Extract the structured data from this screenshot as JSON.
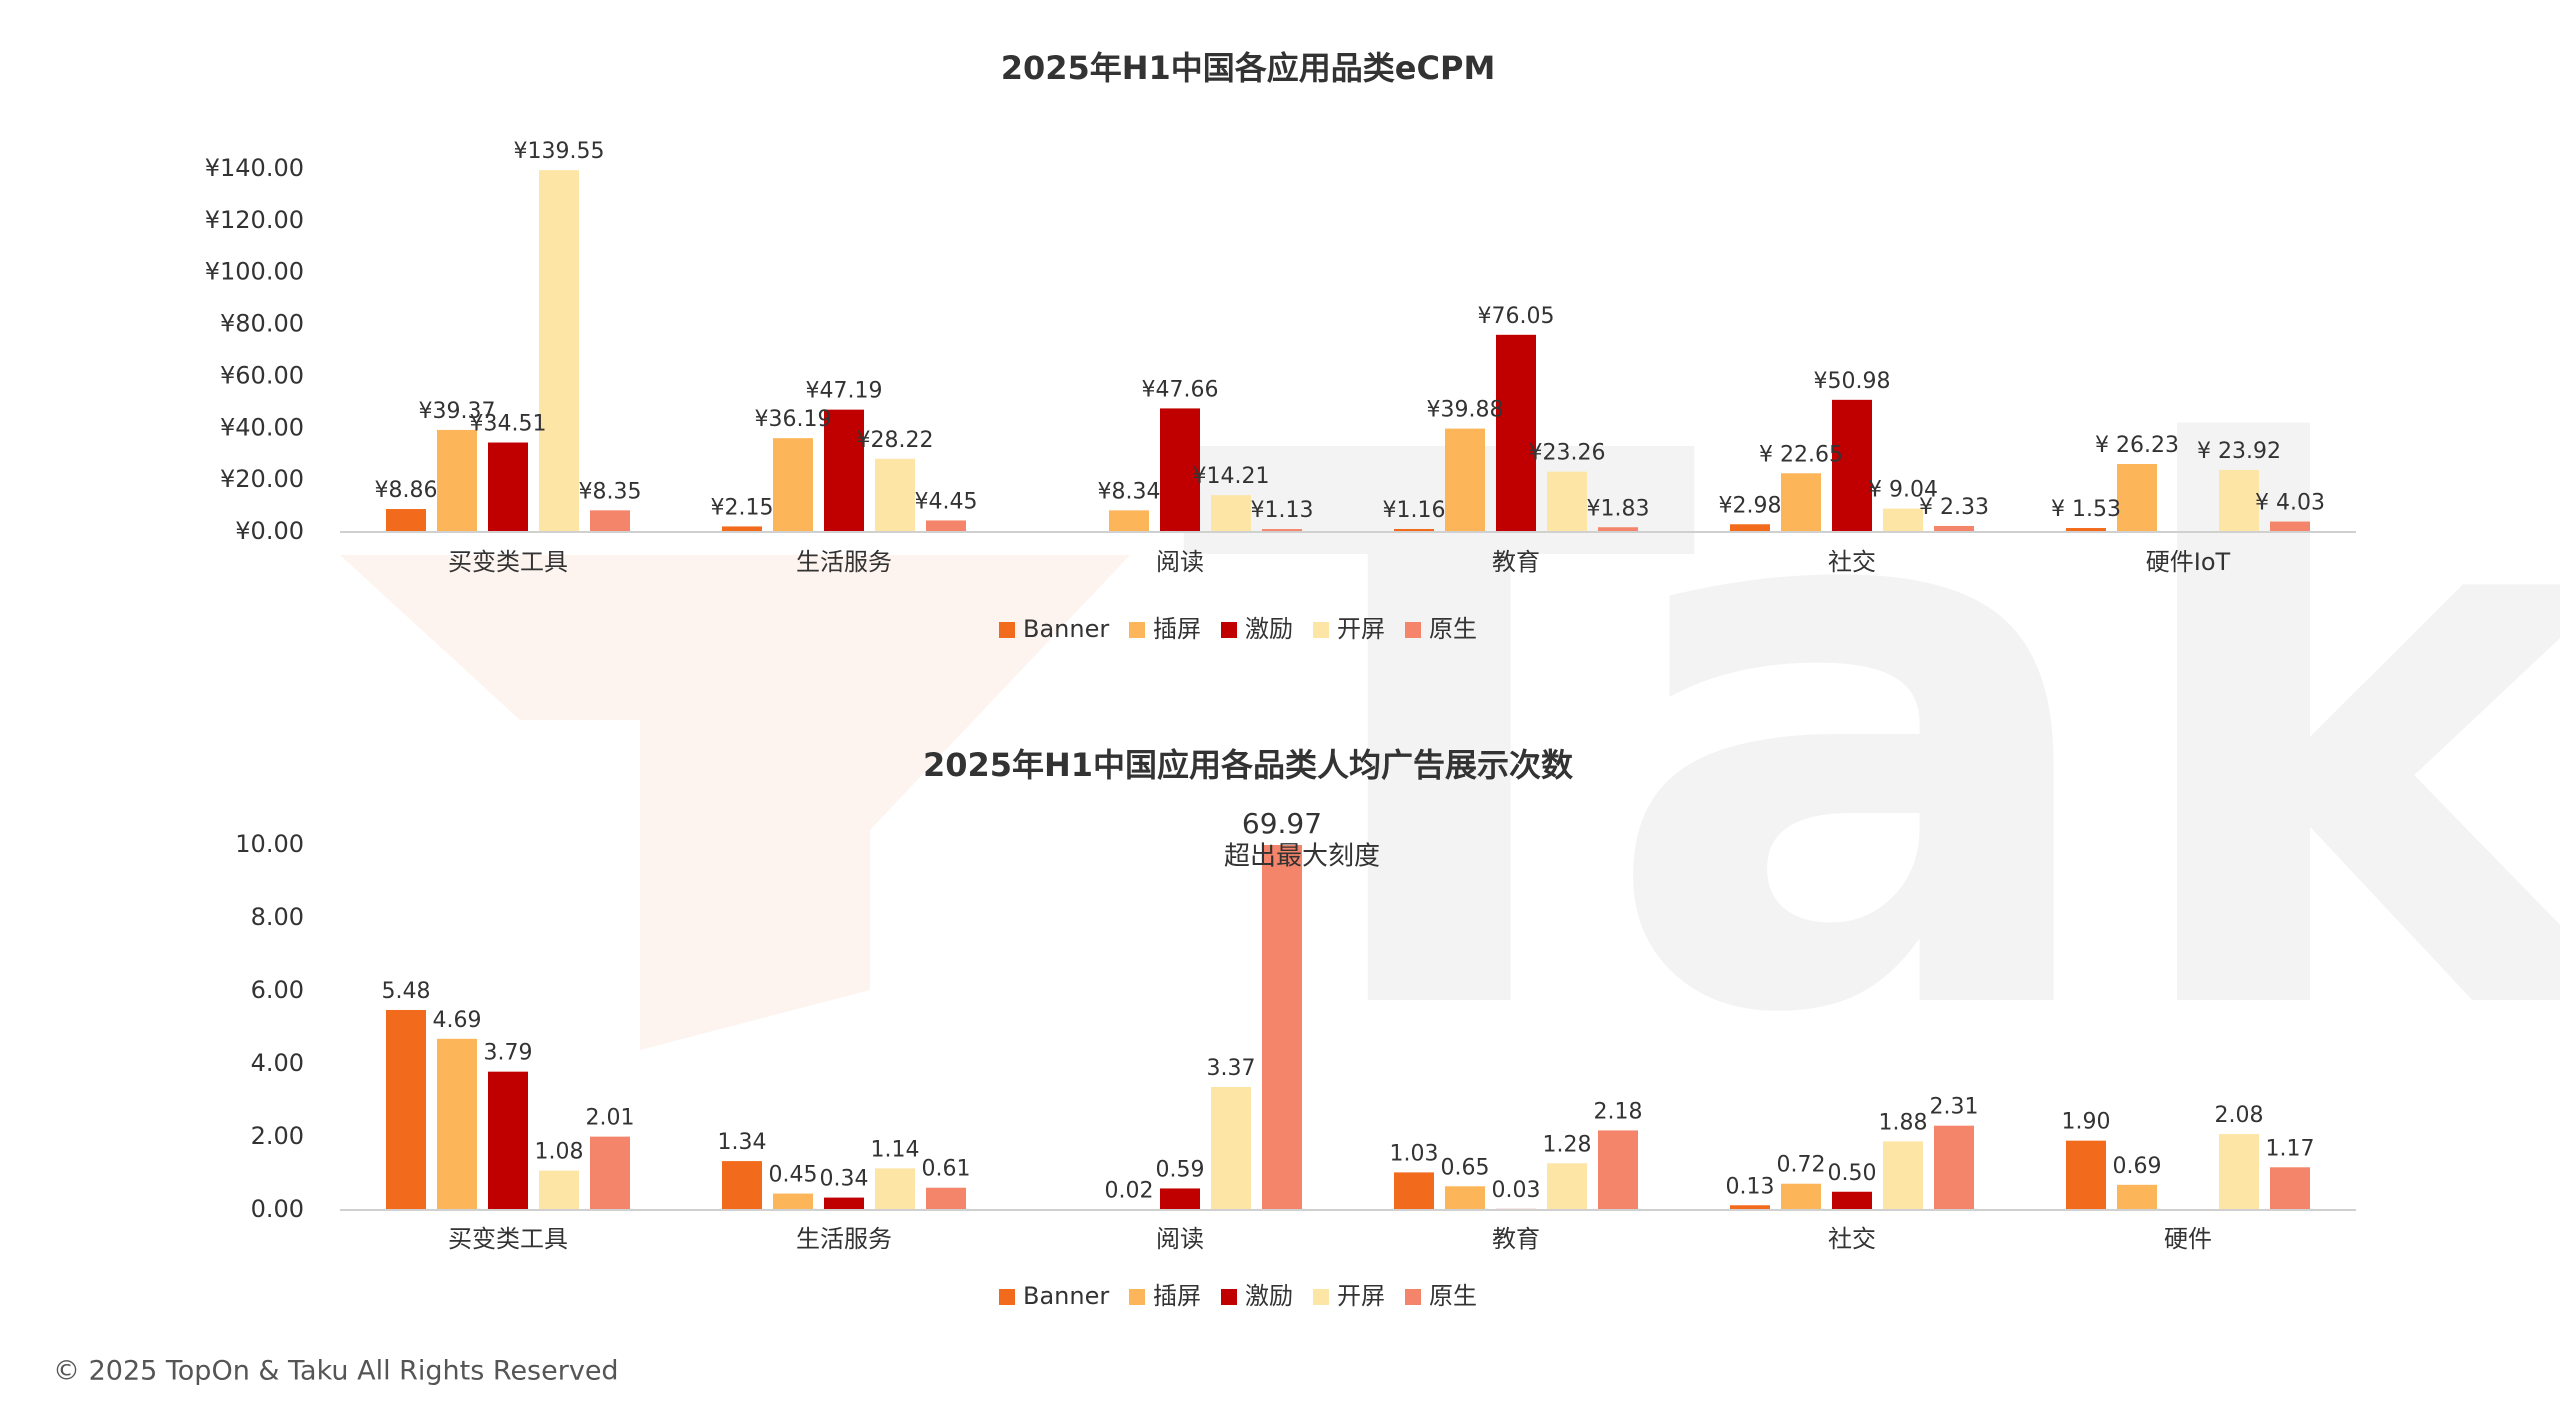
{
  "watermark": "Taku",
  "footer": "© 2025 TopOn & Taku All Rights Reserved",
  "chart_data": [
    {
      "type": "bar",
      "title": "2025年H1中国各应用品类eCPM",
      "categories": [
        "买变类工具",
        "生活服务",
        "阅读",
        "教育",
        "社交",
        "硬件IoT"
      ],
      "ylim": [
        0,
        140
      ],
      "yticks": [
        {
          "value": 0,
          "label": "¥0.00"
        },
        {
          "value": 20,
          "label": "¥20.00"
        },
        {
          "value": 40,
          "label": "¥40.00"
        },
        {
          "value": 60,
          "label": "¥60.00"
        },
        {
          "value": 80,
          "label": "¥80.00"
        },
        {
          "value": 100,
          "label": "¥100.00"
        },
        {
          "value": 120,
          "label": "¥120.00"
        },
        {
          "value": 140,
          "label": "¥140.00"
        }
      ],
      "legend": "bottom",
      "series": [
        {
          "name": "Banner",
          "color": "#f26b1d",
          "values": [
            8.86,
            2.15,
            null,
            1.16,
            2.98,
            1.53
          ],
          "value_labels": [
            "¥8.86",
            "¥2.15",
            null,
            "¥1.16",
            "¥2.98",
            "¥ 1.53"
          ]
        },
        {
          "name": "插屏",
          "color": "#fdb55a",
          "values": [
            39.37,
            36.19,
            8.34,
            39.88,
            22.65,
            26.23
          ],
          "value_labels": [
            "¥39.37",
            "¥36.19",
            "¥8.34",
            "¥39.88",
            "¥ 22.65",
            "¥ 26.23"
          ]
        },
        {
          "name": "激励",
          "color": "#c00000",
          "values": [
            34.51,
            47.19,
            47.66,
            76.05,
            50.98,
            null
          ],
          "value_labels": [
            "¥34.51",
            "¥47.19",
            "¥47.66",
            "¥76.05",
            "¥50.98",
            null
          ]
        },
        {
          "name": "开屏",
          "color": "#fde5a5",
          "values": [
            139.55,
            28.22,
            14.21,
            23.26,
            9.04,
            23.92
          ],
          "value_labels": [
            "¥139.55",
            "¥28.22",
            "¥14.21",
            "¥23.26",
            "¥ 9.04",
            "¥ 23.92"
          ]
        },
        {
          "name": "原生",
          "color": "#f4846a",
          "values": [
            8.35,
            4.45,
            1.13,
            1.83,
            2.33,
            4.03
          ],
          "value_labels": [
            "¥8.35",
            "¥4.45",
            "¥1.13",
            "¥1.83",
            "¥ 2.33",
            "¥ 4.03"
          ]
        }
      ]
    },
    {
      "type": "bar",
      "title": "2025年H1中国应用各品类人均广告展示次数",
      "categories": [
        "买变类工具",
        "生活服务",
        "阅读",
        "教育",
        "社交",
        "硬件"
      ],
      "ylim": [
        0,
        10
      ],
      "yticks": [
        {
          "value": 0,
          "label": "0.00"
        },
        {
          "value": 2,
          "label": "2.00"
        },
        {
          "value": 4,
          "label": "4.00"
        },
        {
          "value": 6,
          "label": "6.00"
        },
        {
          "value": 8,
          "label": "8.00"
        },
        {
          "value": 10,
          "label": "10.00"
        }
      ],
      "annotation": "超出最大刻度",
      "legend": "bottom",
      "series": [
        {
          "name": "Banner",
          "color": "#f26b1d",
          "values": [
            5.48,
            1.34,
            null,
            1.03,
            0.13,
            1.9
          ],
          "value_labels": [
            "5.48",
            "1.34",
            null,
            "1.03",
            "0.13",
            "1.90"
          ]
        },
        {
          "name": "插屏",
          "color": "#fdb55a",
          "values": [
            4.69,
            0.45,
            0.02,
            0.65,
            0.72,
            0.69
          ],
          "value_labels": [
            "4.69",
            "0.45",
            "0.02",
            "0.65",
            "0.72",
            "0.69"
          ]
        },
        {
          "name": "激励",
          "color": "#c00000",
          "values": [
            3.79,
            0.34,
            0.59,
            0.03,
            0.5,
            null
          ],
          "value_labels": [
            "3.79",
            "0.34",
            "0.59",
            "0.03",
            "0.50",
            null
          ]
        },
        {
          "name": "开屏",
          "color": "#fde5a5",
          "values": [
            1.08,
            1.14,
            3.37,
            1.28,
            1.88,
            2.08
          ],
          "value_labels": [
            "1.08",
            "1.14",
            "3.37",
            "1.28",
            "1.88",
            "2.08"
          ]
        },
        {
          "name": "原生",
          "color": "#f4846a",
          "values": [
            2.01,
            0.61,
            69.97,
            2.18,
            2.31,
            1.17
          ],
          "value_labels": [
            "2.01",
            "0.61",
            "69.97",
            "2.18",
            "2.31",
            "1.17"
          ]
        }
      ]
    }
  ]
}
